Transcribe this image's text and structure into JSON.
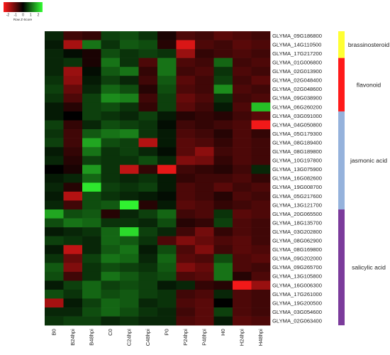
{
  "chart_data": {
    "type": "heatmap",
    "title": "",
    "legend": {
      "title": "Row Z-Score",
      "ticks": [
        "-2",
        "-1",
        "0",
        "1",
        "2"
      ],
      "range": [
        -2,
        2
      ],
      "colors": {
        "low": "#ff1a1a",
        "mid": "#000000",
        "high": "#33ff33"
      },
      "placement": "top-left"
    },
    "columns": [
      "B0",
      "B24hpi",
      "B48hpi",
      "C0",
      "C24hpi",
      "C48hpi",
      "P0",
      "P24hpi",
      "P48hpi",
      "H0",
      "H24hpi",
      "H48hpi"
    ],
    "rows": [
      "GLYMA_09G186800",
      "GLYMA_14G110500",
      "GLYMA_17G217200",
      "GLYMA_01G006800",
      "GLYMA_02G013900",
      "GLYMA_02G048400",
      "GLYMA_02G048600",
      "GLYMA_09G038900",
      "GLYMA_06G260200",
      "GLYMA_03G091000",
      "GLYMA_04G050800",
      "GLYMA_05G179300",
      "GLYMA_08G189400",
      "GLYMA_08G189800",
      "GLYMA_10G197800",
      "GLYMA_13G075900",
      "GLYMA_16G082600",
      "GLYMA_19G008700",
      "GLYMA_05G217600",
      "GLYMA_13G121700",
      "GLYMA_20G065500",
      "GLYMA_18G135700",
      "GLYMA_03G202800",
      "GLYMA_08G062900",
      "GLYMA_08G169800",
      "GLYMA_09G202000",
      "GLYMA_09G265700",
      "GLYMA_13G105800",
      "GLYMA_16G006300",
      "GLYMA_17G261000",
      "GLYMA_19G200500",
      "GLYMA_03G054600",
      "GLYMA_02G063400"
    ],
    "values": [
      [
        0.3,
        -0.5,
        -0.4,
        0.5,
        0.6,
        0.4,
        -0.2,
        -0.6,
        -0.5,
        -0.7,
        -0.6,
        -0.5
      ],
      [
        0.2,
        -1.3,
        0.9,
        0.4,
        0.7,
        0.6,
        -0.3,
        -1.7,
        -0.6,
        -0.5,
        -0.7,
        -0.6
      ],
      [
        0.3,
        0.1,
        -0.2,
        0.6,
        0.4,
        0.5,
        0.4,
        -1.2,
        -0.4,
        -0.5,
        -0.6,
        -0.5
      ],
      [
        0.3,
        0.4,
        -0.2,
        0.9,
        0.4,
        -0.6,
        0.9,
        -0.6,
        -0.5,
        0.8,
        -0.5,
        -0.6
      ],
      [
        0.3,
        -1.2,
        0.1,
        0.7,
        0.9,
        -0.4,
        0.9,
        -0.5,
        -0.6,
        0.4,
        -0.6,
        -0.5
      ],
      [
        0.4,
        -1.1,
        0.2,
        0.5,
        0.3,
        -0.5,
        0.7,
        -0.7,
        -0.5,
        0.5,
        -0.5,
        -0.7
      ],
      [
        0.5,
        -0.8,
        0.3,
        0.8,
        0.6,
        -0.3,
        0.6,
        -0.6,
        -0.5,
        1.1,
        -0.6,
        -0.5
      ],
      [
        0.4,
        -0.6,
        0.5,
        1.1,
        1.0,
        -0.5,
        0.5,
        -0.8,
        -0.6,
        0.4,
        -0.5,
        -0.6
      ],
      [
        0.2,
        -0.3,
        0.5,
        0.6,
        0.4,
        -0.4,
        0.5,
        -0.7,
        -0.5,
        0.2,
        -0.6,
        1.5
      ],
      [
        0.2,
        0.0,
        0.5,
        0.4,
        0.3,
        0.5,
        0.2,
        -0.3,
        -0.4,
        -0.3,
        -0.5,
        -0.7
      ],
      [
        0.5,
        -0.4,
        0.3,
        0.6,
        0.5,
        0.4,
        0.1,
        -0.5,
        -0.4,
        -0.5,
        -0.6,
        -1.9
      ],
      [
        0.4,
        -0.5,
        0.7,
        0.9,
        1.0,
        0.4,
        0.2,
        -0.6,
        -0.5,
        -0.3,
        -0.6,
        -0.4
      ],
      [
        0.5,
        -0.5,
        1.3,
        0.6,
        0.5,
        -1.4,
        0.2,
        -0.7,
        -0.6,
        -0.4,
        -0.6,
        -0.5
      ],
      [
        0.2,
        -0.4,
        0.9,
        0.4,
        0.5,
        0.3,
        0.1,
        -0.7,
        -1.1,
        -0.5,
        -0.6,
        -0.5
      ],
      [
        0.3,
        -0.3,
        0.5,
        0.4,
        0.4,
        0.6,
        0.3,
        -1.0,
        -0.9,
        -0.4,
        -0.6,
        -0.5
      ],
      [
        0.0,
        -0.2,
        1.2,
        0.4,
        -1.5,
        -0.4,
        -1.8,
        -0.5,
        -0.4,
        -0.3,
        -0.5,
        0.3
      ],
      [
        0.2,
        0.3,
        0.8,
        0.4,
        0.3,
        0.4,
        0.2,
        -0.4,
        -0.5,
        -0.5,
        -0.6,
        -0.4
      ],
      [
        0.3,
        -0.3,
        1.8,
        0.5,
        0.4,
        0.5,
        0.2,
        -0.6,
        -0.5,
        -0.7,
        -0.5,
        -0.6
      ],
      [
        0.2,
        -1.4,
        0.6,
        0.4,
        0.3,
        0.2,
        0.1,
        -0.6,
        -0.5,
        -0.3,
        -0.6,
        -0.5
      ],
      [
        0.3,
        -0.5,
        0.6,
        0.7,
        1.9,
        -0.3,
        0.2,
        -0.7,
        -0.6,
        -0.4,
        -0.5,
        -0.6
      ],
      [
        1.3,
        0.6,
        0.7,
        -0.3,
        0.3,
        0.5,
        0.8,
        -0.5,
        -0.6,
        0.4,
        -0.7,
        -0.6
      ],
      [
        0.6,
        0.9,
        0.8,
        0.4,
        0.4,
        0.3,
        0.6,
        -0.3,
        -0.4,
        0.5,
        -0.6,
        -0.5
      ],
      [
        0.2,
        0.3,
        0.4,
        0.8,
        1.7,
        0.5,
        0.3,
        -0.5,
        -0.9,
        -0.4,
        -0.6,
        -0.5
      ],
      [
        0.5,
        0.4,
        0.3,
        0.8,
        0.7,
        0.4,
        -0.6,
        -1.0,
        -0.8,
        -0.6,
        -0.7,
        -0.5
      ],
      [
        0.2,
        -1.5,
        0.3,
        0.7,
        0.9,
        0.2,
        0.6,
        -0.6,
        -1.0,
        -0.5,
        -0.7,
        -0.6
      ],
      [
        0.4,
        -0.8,
        0.5,
        0.9,
        0.8,
        0.3,
        0.8,
        -0.7,
        -0.6,
        0.6,
        -0.6,
        -0.7
      ],
      [
        0.7,
        -1.0,
        0.4,
        0.6,
        0.5,
        0.4,
        0.7,
        -1.0,
        -0.8,
        0.9,
        -0.6,
        -0.5
      ],
      [
        0.6,
        -0.5,
        0.4,
        0.9,
        0.7,
        0.5,
        0.6,
        -0.6,
        -0.7,
        0.9,
        -0.3,
        -0.6
      ],
      [
        0.2,
        0.5,
        0.8,
        0.5,
        0.6,
        0.5,
        0.2,
        0.3,
        -0.4,
        -0.3,
        -1.9,
        -1.2
      ],
      [
        0.6,
        0.4,
        0.8,
        0.6,
        0.7,
        0.5,
        0.4,
        -0.5,
        -0.6,
        0.3,
        -0.6,
        -0.5
      ],
      [
        -1.3,
        0.2,
        0.5,
        0.8,
        0.7,
        0.3,
        0.4,
        -0.6,
        -0.7,
        0.0,
        -0.6,
        -0.5
      ],
      [
        0.3,
        0.3,
        0.6,
        0.8,
        0.6,
        0.4,
        0.3,
        -0.5,
        -0.7,
        0.5,
        -0.6,
        -0.5
      ],
      [
        0.4,
        0.5,
        0.5,
        0.3,
        0.4,
        0.3,
        0.3,
        -0.6,
        -0.7,
        0.2,
        -0.7,
        -0.6
      ]
    ],
    "groups": [
      {
        "name": "brassinosteroid",
        "start": 0,
        "count": 3,
        "color": "#ffff33"
      },
      {
        "name": "flavonoid",
        "start": 3,
        "count": 6,
        "color": "#ff1a1a"
      },
      {
        "name": "jasmonic acid",
        "start": 9,
        "count": 11,
        "color": "#95b2dc"
      },
      {
        "name": "salicylic acid",
        "start": 20,
        "count": 13,
        "color": "#7b3b9b"
      }
    ],
    "dendrogram_visible": false,
    "grid": false
  }
}
